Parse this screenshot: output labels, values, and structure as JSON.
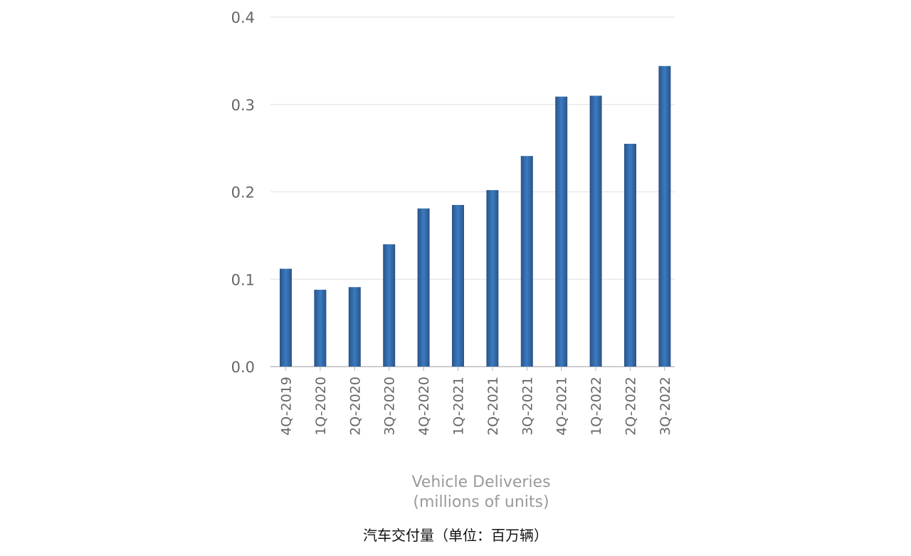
{
  "chart_data": {
    "type": "bar",
    "categories": [
      "4Q-2019",
      "1Q-2020",
      "2Q-2020",
      "3Q-2020",
      "4Q-2020",
      "1Q-2021",
      "2Q-2021",
      "3Q-2021",
      "4Q-2021",
      "1Q-2022",
      "2Q-2022",
      "3Q-2022"
    ],
    "values": [
      0.112,
      0.088,
      0.091,
      0.14,
      0.181,
      0.185,
      0.202,
      0.241,
      0.309,
      0.31,
      0.255,
      0.344
    ],
    "yticks": [
      "0.0",
      "0.1",
      "0.2",
      "0.3",
      "0.4"
    ],
    "ylim": [
      0,
      0.4
    ],
    "xlabel": [
      "Vehicle Deliveries",
      "(millions of units)"
    ],
    "ylabel": "",
    "grid": true,
    "bar_color_dark": "#2b5388",
    "bar_color_light": "#3a7bc0"
  },
  "caption": "汽车交付量（单位：百万辆）"
}
